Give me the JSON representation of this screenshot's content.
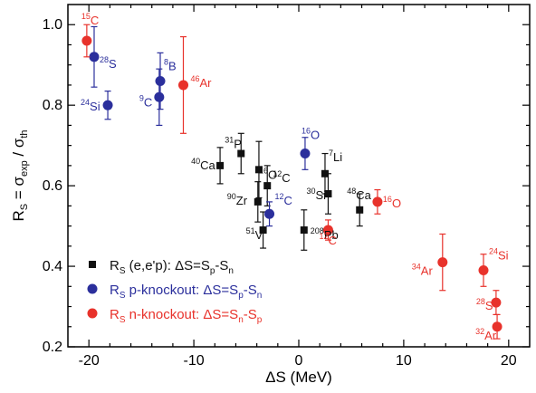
{
  "chart_data": {
    "type": "scatter",
    "xlabel": "ΔS (MeV)",
    "ylabel": "R_S = σ_exp / σ_th",
    "xlim": [
      -22,
      22
    ],
    "ylim": [
      0.2,
      1.05
    ],
    "xticks": [
      -20,
      -10,
      0,
      10,
      20
    ],
    "yticks": [
      0.2,
      0.4,
      0.6,
      0.8,
      1.0
    ],
    "xtick_labels": [
      "-20",
      "-10",
      "0",
      "10",
      "20"
    ],
    "ytick_labels": [
      "0.2",
      "0.4",
      "0.6",
      "0.8",
      "1.0"
    ],
    "grid": false,
    "legend_position": "bottom-left",
    "series": [
      {
        "name": "R_S (e,e'p): ΔS=S_p-S_n",
        "legend": {
          "sym": "R",
          "sub": "S",
          "desc": "(e,e'p): ΔS=S",
          "sub1": "p",
          "mid": "-S",
          "sub2": "n"
        },
        "marker": "square",
        "color": "#111111",
        "points": [
          {
            "x": -7.5,
            "y": 0.65,
            "err": 0.045,
            "label": {
              "mass": "40",
              "el": "Ca"
            }
          },
          {
            "x": -5.5,
            "y": 0.68,
            "err": 0.05,
            "label": {
              "mass": "31",
              "el": "P"
            }
          },
          {
            "x": -3.8,
            "y": 0.64,
            "err": 0.07,
            "label": {
              "mass": "16",
              "el": "O"
            }
          },
          {
            "x": -3.0,
            "y": 0.6,
            "err": 0.05,
            "label": {
              "mass": "12",
              "el": "C"
            }
          },
          {
            "x": -3.9,
            "y": 0.56,
            "err": 0.05,
            "label": {
              "mass": "90",
              "el": "Zr"
            }
          },
          {
            "x": -3.4,
            "y": 0.49,
            "err": 0.045,
            "label": {
              "mass": "51",
              "el": "V"
            }
          },
          {
            "x": 0.5,
            "y": 0.49,
            "err": 0.05,
            "label": {
              "mass": "208",
              "el": "Pb"
            }
          },
          {
            "x": 2.5,
            "y": 0.63,
            "err": 0.05,
            "label": {
              "mass": "7",
              "el": "Li"
            }
          },
          {
            "x": 2.8,
            "y": 0.58,
            "err": 0.05,
            "label": {
              "mass": "30",
              "el": "Si"
            }
          },
          {
            "x": 5.8,
            "y": 0.54,
            "err": 0.04,
            "label": {
              "mass": "48",
              "el": "Ca"
            }
          }
        ]
      },
      {
        "name": "R_S p-knockout: ΔS=S_p-S_n",
        "legend": {
          "sym": "R",
          "sub": "S",
          "desc": "p-knockout: ΔS=S",
          "sub1": "p",
          "mid": "-S",
          "sub2": "n"
        },
        "marker": "circle",
        "color": "#2b2f9c",
        "points": [
          {
            "x": -19.5,
            "y": 0.92,
            "err": 0.075,
            "label": {
              "mass": "28",
              "el": "S"
            }
          },
          {
            "x": -18.2,
            "y": 0.8,
            "err": 0.035,
            "label": {
              "mass": "24",
              "el": "Si"
            }
          },
          {
            "x": -13.2,
            "y": 0.86,
            "err": 0.07,
            "label": {
              "mass": "8",
              "el": "B"
            }
          },
          {
            "x": -13.3,
            "y": 0.82,
            "err": 0.07,
            "label": {
              "mass": "9",
              "el": "C"
            }
          },
          {
            "x": 0.6,
            "y": 0.68,
            "err": 0.04,
            "label": {
              "mass": "16",
              "el": "O"
            }
          },
          {
            "x": -2.8,
            "y": 0.53,
            "err": 0.03,
            "label": {
              "mass": "12",
              "el": "C"
            }
          }
        ]
      },
      {
        "name": "R_S n-knockout: ΔS=S_n-S_p",
        "legend": {
          "sym": "R",
          "sub": "S",
          "desc": "n-knockout: ΔS=S",
          "sub1": "n",
          "mid": "-S",
          "sub2": "p"
        },
        "marker": "circle",
        "color": "#e8322b",
        "points": [
          {
            "x": -20.2,
            "y": 0.96,
            "err": 0.04,
            "label": {
              "mass": "15",
              "el": "C"
            }
          },
          {
            "x": -11.0,
            "y": 0.85,
            "err": 0.12,
            "label": {
              "mass": "46",
              "el": "Ar"
            }
          },
          {
            "x": 2.8,
            "y": 0.49,
            "err": 0.025,
            "label": {
              "mass": "12",
              "el": "C"
            }
          },
          {
            "x": 7.5,
            "y": 0.56,
            "err": 0.03,
            "label": {
              "mass": "16",
              "el": "O"
            }
          },
          {
            "x": 13.7,
            "y": 0.41,
            "err": 0.07,
            "label": {
              "mass": "34",
              "el": "Ar"
            }
          },
          {
            "x": 17.6,
            "y": 0.39,
            "err": 0.04,
            "label": {
              "mass": "24",
              "el": "Si"
            }
          },
          {
            "x": 18.8,
            "y": 0.31,
            "err": 0.03,
            "label": {
              "mass": "28",
              "el": "S"
            }
          },
          {
            "x": 18.9,
            "y": 0.25,
            "err": 0.03,
            "label": {
              "mass": "32",
              "el": "Ar"
            }
          }
        ]
      }
    ]
  }
}
